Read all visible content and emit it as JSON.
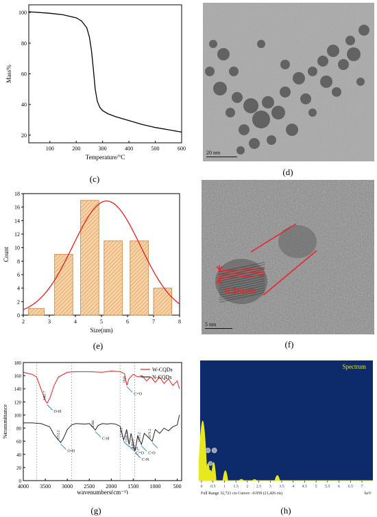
{
  "captions": {
    "c": "(c)",
    "d": "(d)",
    "e": "(e)",
    "f": "(f)",
    "g": "(g)",
    "h": "(h)"
  },
  "chart_data": [
    {
      "panel": "c",
      "type": "line",
      "xlabel": "Temperature/°C",
      "ylabel": "Mass%",
      "xlim": [
        20,
        600
      ],
      "ylim": [
        15,
        105
      ],
      "xticks": [
        "100",
        "200",
        "300",
        "400",
        "500",
        "600"
      ],
      "yticks": [
        "20",
        "40",
        "60",
        "80",
        "100"
      ],
      "series": [
        {
          "x": [
            20,
            100,
            150,
            200,
            220,
            240,
            250,
            258,
            265,
            272,
            280,
            290,
            300,
            320,
            350,
            400,
            450,
            500,
            550,
            600
          ],
          "y": [
            100.5,
            99.5,
            98.5,
            96.5,
            94.5,
            90,
            84,
            75,
            63,
            50,
            42,
            38,
            36,
            34,
            32,
            29.5,
            27,
            25,
            23.5,
            22
          ]
        }
      ]
    },
    {
      "panel": "e",
      "type": "bar",
      "xlabel": "Size(nm)",
      "ylabel": "Count",
      "xlim": [
        2,
        8
      ],
      "ylim": [
        0,
        18
      ],
      "xticks": [
        "2",
        "3",
        "4",
        "5",
        "6",
        "7",
        "8"
      ],
      "yticks": [
        "0",
        "2",
        "4",
        "6",
        "8",
        "10",
        "12",
        "14",
        "16",
        "18"
      ],
      "bins": [
        [
          2.2,
          2.8
        ],
        [
          3.2,
          3.9
        ],
        [
          4.2,
          4.9
        ],
        [
          5.1,
          5.8
        ],
        [
          6.1,
          6.8
        ],
        [
          7.0,
          7.7
        ]
      ],
      "values": [
        1,
        9,
        17,
        11,
        11,
        4
      ],
      "fit": {
        "type": "gaussian",
        "mean": 5.2,
        "peak": 16.9,
        "sigma": 1.3
      }
    },
    {
      "panel": "g",
      "type": "line",
      "xlabel": "wavenumbers(cm⁻¹)",
      "ylabel": "%transmittance",
      "xlim": [
        4000,
        400
      ],
      "ylim": [
        0,
        180
      ],
      "xticks": [
        "4000",
        "3500",
        "3000",
        "2500",
        "2000",
        "1500",
        "1000",
        "500"
      ],
      "yticks": [
        "0",
        "20",
        "40",
        "60",
        "80",
        "100",
        "120",
        "140",
        "160",
        "180"
      ],
      "legend": "top-right",
      "series": [
        {
          "name": "W-CQDs",
          "x": [
            4000,
            3800,
            3700,
            3600,
            3500,
            3461,
            3400,
            3300,
            3200,
            3000,
            2800,
            2500,
            2200,
            2000,
            1800,
            1700,
            1643,
            1600,
            1500,
            1400,
            1300,
            1200,
            1100,
            1000,
            900,
            800,
            700,
            600,
            500,
            450
          ],
          "y": [
            165,
            162,
            158,
            140,
            122,
            118,
            125,
            145,
            158,
            165,
            166,
            166,
            165,
            167,
            166,
            163,
            145,
            155,
            162,
            158,
            160,
            152,
            158,
            150,
            158,
            148,
            155,
            145,
            152,
            140
          ]
        },
        {
          "name": "N-CQDs",
          "x": [
            4000,
            3800,
            3600,
            3400,
            3300,
            3200,
            3152,
            3100,
            3000,
            2900,
            2800,
            2600,
            2500,
            2400,
            2364,
            2300,
            2200,
            2100,
            2000,
            1900,
            1800,
            1718,
            1650,
            1595,
            1550,
            1460,
            1400,
            1315,
            1250,
            1070,
            1000,
            900,
            800,
            700,
            600,
            500,
            450
          ],
          "y": [
            88,
            88,
            87,
            82,
            70,
            62,
            58,
            63,
            78,
            85,
            87,
            86,
            87,
            80,
            77,
            84,
            87,
            86,
            87,
            86,
            83,
            62,
            78,
            55,
            72,
            45,
            68,
            55,
            72,
            60,
            78,
            72,
            80,
            76,
            82,
            85,
            100
          ]
        }
      ],
      "annotations": [
        {
          "label": "O-H",
          "series": "W-CQDs",
          "value": "3461.7"
        },
        {
          "label": "C=O",
          "series": "W-CQDs",
          "value": "1643"
        },
        {
          "label": "O-H",
          "series": "N-CQDs",
          "value": "3152.2"
        },
        {
          "label": "C-H",
          "series": "N-CQDs",
          "value": "2364"
        },
        {
          "label": "-NH₂",
          "series": "N-CQDs",
          "value": "1718.5"
        },
        {
          "label": "C=O",
          "series": "N-CQDs",
          "value": "1595.5"
        },
        {
          "label": "C-N",
          "series": "N-CQDs",
          "value": "1460.5"
        },
        {
          "label": "C-O",
          "series": "N-CQDs",
          "value": "1315.2"
        },
        {
          "label": "",
          "series": "N-CQDs",
          "value": "1070.2"
        }
      ]
    },
    {
      "panel": "h",
      "type": "bar",
      "title": "Spectrum",
      "xlabel": "keV",
      "xlim": [
        0,
        7.3
      ],
      "xticks": [
        "0",
        "0.5",
        "1",
        "1.5",
        "2",
        "2.5",
        "3",
        "3.5",
        "4",
        "4.5",
        "5",
        "5.5",
        "6",
        "6.5",
        "7"
      ],
      "footer": "Full Range 32,721 cts Cursor: -0.059 (21,426 cts)",
      "peaks": [
        {
          "x": 0.05,
          "value": 1.0
        },
        {
          "x": 0.28,
          "value": 0.28
        },
        {
          "x": 0.39,
          "value": 0.17
        },
        {
          "x": 0.53,
          "value": 0.3
        },
        {
          "x": 1.04,
          "value": 0.16
        },
        {
          "x": 3.31,
          "value": 0.08
        },
        {
          "x": 1.74,
          "value": 0.015
        },
        {
          "x": 2.31,
          "value": 0.012
        }
      ]
    }
  ],
  "micrographs": {
    "d": {
      "scalebar": "20 nm"
    },
    "f": {
      "lattice": "0.25nm",
      "scalebar": "5 nm"
    }
  }
}
